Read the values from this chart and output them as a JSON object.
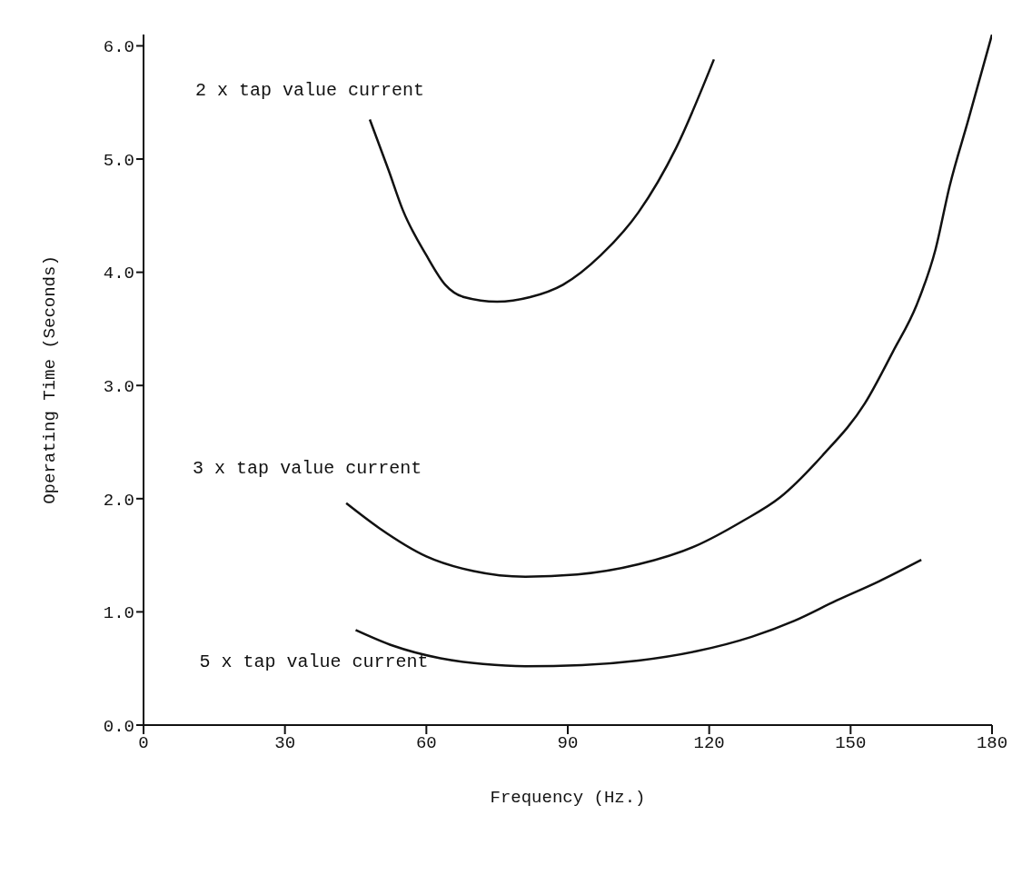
{
  "chart_data": {
    "type": "line",
    "xlabel": "Frequency (Hz.)",
    "ylabel": "Operating Time (Seconds)",
    "xlim": [
      0,
      180
    ],
    "xticks": [
      0,
      30,
      60,
      90,
      120,
      150,
      180
    ],
    "ylim": [
      0,
      6.1
    ],
    "yticks": [
      {
        "value": 0,
        "label": "0.0"
      },
      {
        "value": 1,
        "label": "1.0"
      },
      {
        "value": 2,
        "label": "2.0"
      },
      {
        "value": 3,
        "label": "3.0"
      },
      {
        "value": 4,
        "label": "4.0"
      },
      {
        "value": 5,
        "label": "5.0"
      },
      {
        "value": 6,
        "label": "6.0"
      }
    ],
    "grid": false,
    "marker": "none",
    "line_style": "solid",
    "series": [
      {
        "name": "2 x tap value current",
        "color": "#111111",
        "x": [
          48,
          52,
          55,
          60,
          64,
          68,
          75,
          82,
          89,
          97,
          105,
          113,
          121
        ],
        "values": [
          5.35,
          4.9,
          4.55,
          4.15,
          3.89,
          3.78,
          3.74,
          3.78,
          3.89,
          4.15,
          4.53,
          5.1,
          5.88
        ]
      },
      {
        "name": "3 x tap value current",
        "color": "#111111",
        "x": [
          43,
          50,
          60,
          70,
          81,
          92,
          105,
          117,
          127,
          135,
          144,
          153,
          159,
          164,
          168,
          171,
          175,
          180
        ],
        "values": [
          1.96,
          1.74,
          1.49,
          1.36,
          1.31,
          1.33,
          1.42,
          1.58,
          1.8,
          2.01,
          2.38,
          2.84,
          3.3,
          3.71,
          4.2,
          4.76,
          5.35,
          6.1
        ]
      },
      {
        "name": "5 x tap value current",
        "color": "#111111",
        "x": [
          45,
          53,
          63,
          72,
          81,
          93,
          105,
          117,
          129,
          138,
          147,
          156,
          165
        ],
        "values": [
          0.84,
          0.7,
          0.59,
          0.54,
          0.52,
          0.53,
          0.57,
          0.65,
          0.78,
          0.92,
          1.1,
          1.27,
          1.46
        ]
      }
    ]
  }
}
